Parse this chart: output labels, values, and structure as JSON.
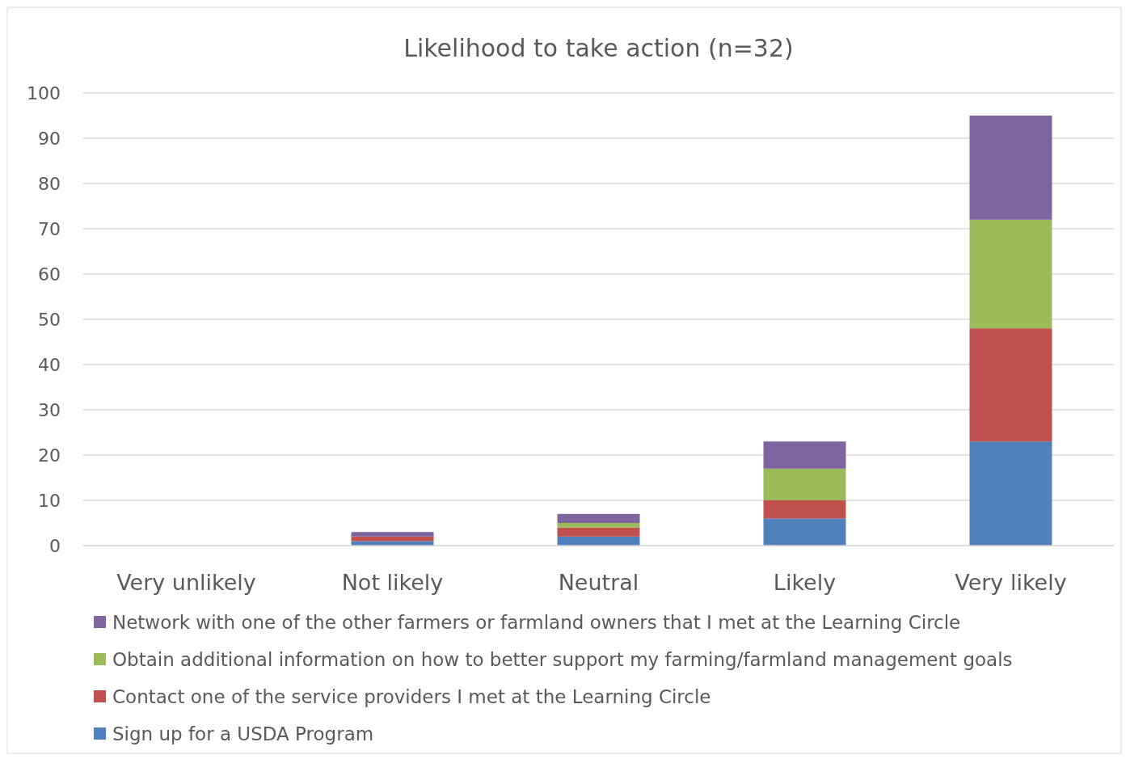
{
  "chart_data": {
    "type": "bar",
    "title": "Likelihood to take action (n=32)",
    "stacked": true,
    "categories": [
      "Very unlikely",
      "Not likely",
      "Neutral",
      "Likely",
      "Very likely"
    ],
    "series": [
      {
        "name": "Sign up for a USDA Program",
        "color": "#4f81bd",
        "values": [
          0,
          1,
          2,
          6,
          23
        ]
      },
      {
        "name": "Contact one of the service providers I met at the Learning Circle",
        "color": "#c0504d",
        "values": [
          0,
          1,
          2,
          4,
          25
        ]
      },
      {
        "name": "Obtain additional information on how to better support my farming/farmland management goals",
        "color": "#9bbb59",
        "values": [
          0,
          0,
          1,
          7,
          24
        ]
      },
      {
        "name": "Network with one of the other farmers or farmland owners that I met at the Learning Circle",
        "color": "#8064a2",
        "values": [
          0,
          1,
          2,
          6,
          23
        ]
      }
    ],
    "ylim": [
      0,
      100
    ],
    "yticks": [
      0,
      10,
      20,
      30,
      40,
      50,
      60,
      70,
      80,
      90,
      100
    ],
    "grid": "y",
    "legend": "bottom"
  }
}
